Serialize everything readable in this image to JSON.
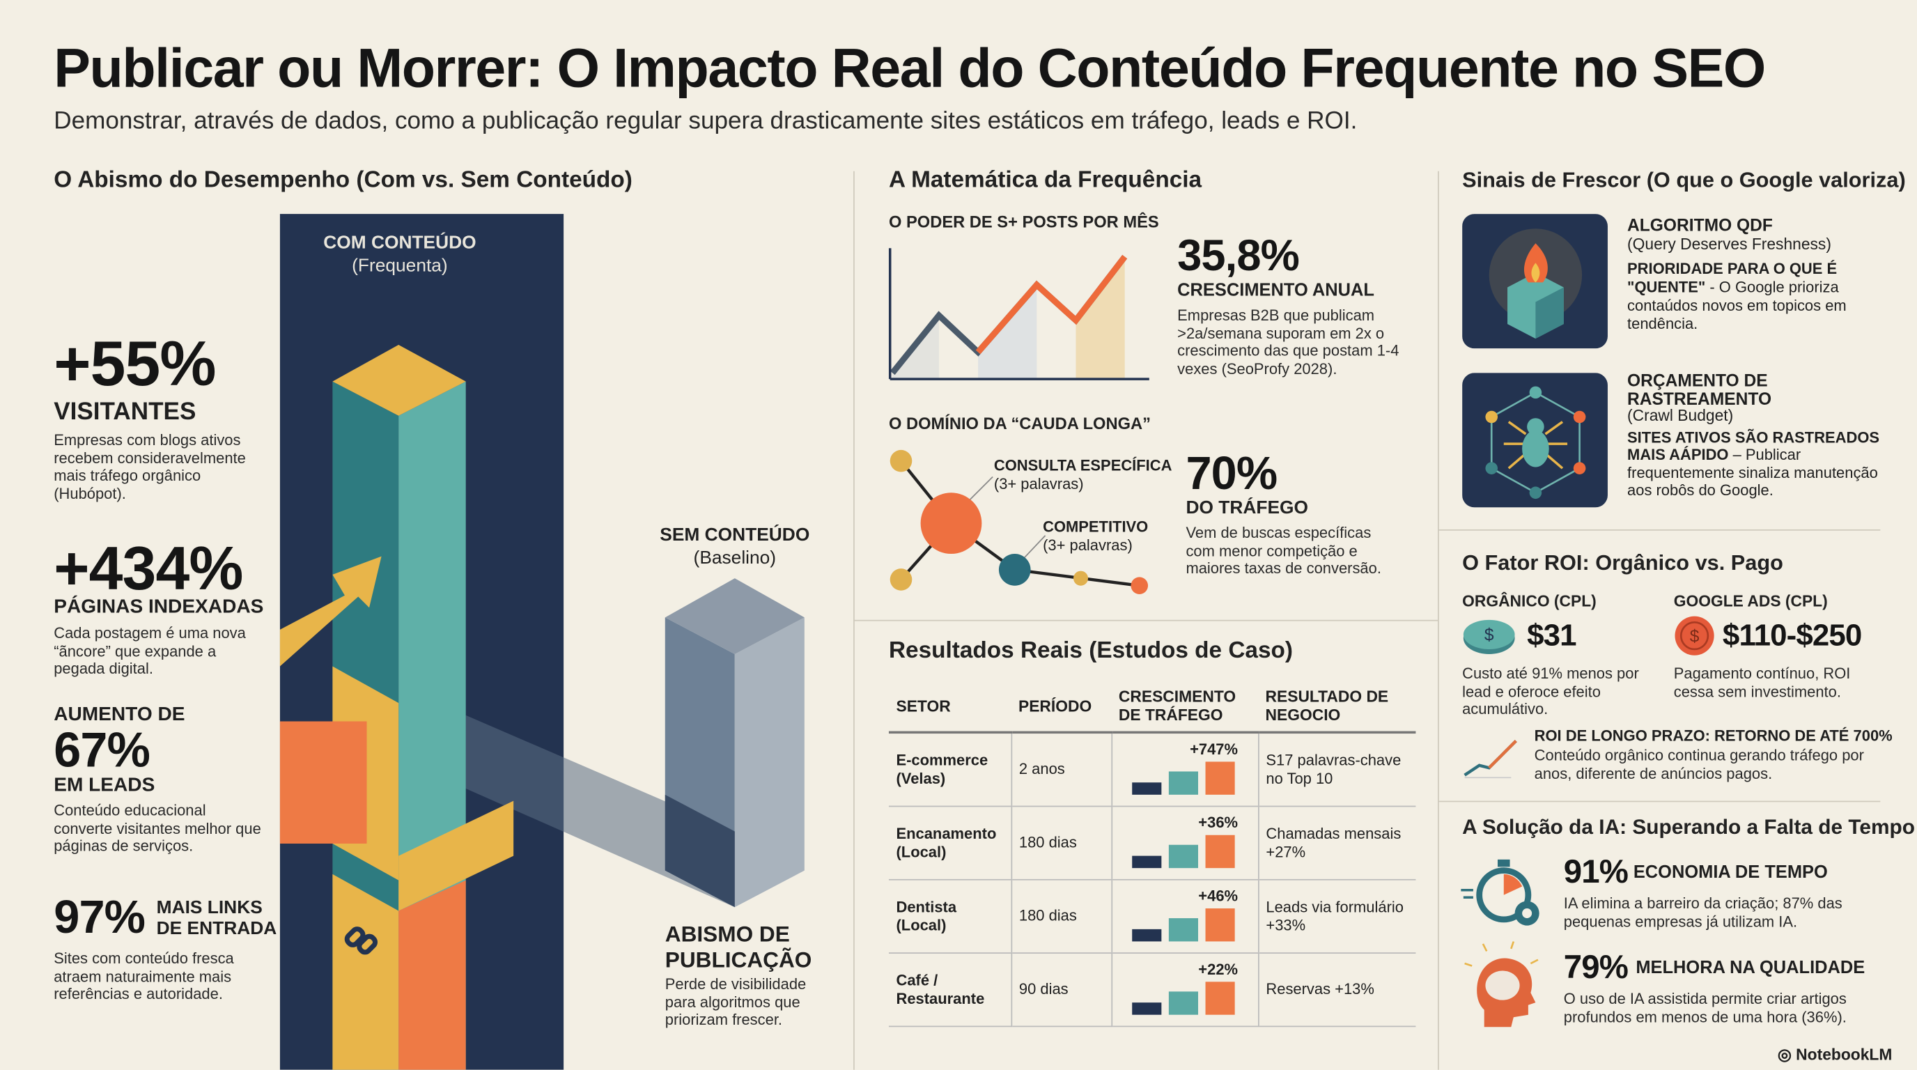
{
  "header": {
    "title": "Publicar ou Morrer: O Impacto Real do Conteúdo Frequente no SEO",
    "subtitle": "Demonstrar, através de dados, como a publicação regular supera drasticamente sites estáticos em tráfego, leads e ROI."
  },
  "left": {
    "heading": "O Abismo do Desempenho (Com vs. Sem Conteúdo)",
    "com_label": "COM CONTEÚDO",
    "com_sub": "(Frequenta)",
    "sem_label": "SEM CONTEÚDO",
    "sem_sub": "(Baselino)",
    "abismo_title": "ABISMO DE PUBLICAÇÃO",
    "abismo_desc": "Perde de visibilidade para algoritmos que priorizam frescer.",
    "stats": [
      {
        "value": "+55%",
        "label": "VISITANTES",
        "desc": "Empresas com blogs ativos recebem consideravelmente mais tráfego orgânico (Hubópot)."
      },
      {
        "value": "+434%",
        "label": "PÁGINAS INDEXADAS",
        "desc": "Cada postagem é uma nova “ãncore” que expande a pegada digital."
      },
      {
        "pre": "AUMENTO DE",
        "value": "67%",
        "label": "EM LEADS",
        "desc": "Conteúdo educacional converte visitantes melhor que páginas de serviços."
      },
      {
        "value": "97%",
        "label": "MAIS LINKS DE ENTRADA",
        "desc": "Sites com conteúdo fresca atraem naturaimente mais referências e autoridade."
      }
    ]
  },
  "middle": {
    "heading": "A Matemática da Frequência",
    "poder": {
      "title": "O PODER DE S+ POSTS POR MÊS",
      "value": "35,8%",
      "label": "CRESCIMENTO ANUAL",
      "desc": "Empresas B2B que publicam >2a/semana suporam em 2x o crescimento das que postam 1-4 vexes (SeoProfy 2028)."
    },
    "cauda": {
      "title": "O DOMÍNIO DA “CAUDA LONGA”",
      "node1": "CONSULTA ESPECÍFICA",
      "node1_sub": "(3+ palavras)",
      "node2": "COMPETITIVO",
      "node2_sub": "(3+ palavras)",
      "value": "70%",
      "label": "DO TRÁFEGO",
      "desc": "Vem de buscas específicas com menor competição e maiores taxas de conversão."
    },
    "cases": {
      "heading": "Resultados Reais (Estudos de Caso)",
      "columns": [
        "SETOR",
        "PERÍODO",
        "CRESCIMENTO DE TRÁFEGO",
        "RESULTADO DE NEGOCIO"
      ],
      "rows": [
        {
          "setor": "E-commerce (Velas)",
          "periodo": "2 anos",
          "crescimento": "+747%",
          "resultado": "S17 palavras-chave no Top 10"
        },
        {
          "setor": "Encanamento (Local)",
          "periodo": "180 dias",
          "crescimento": "+36%",
          "resultado": "Chamadas mensais +27%"
        },
        {
          "setor": "Dentista (Local)",
          "periodo": "180 dias",
          "crescimento": "+46%",
          "resultado": "Leads via formulário +33%"
        },
        {
          "setor": "Café / Restaurante",
          "periodo": "90 dias",
          "crescimento": "+22%",
          "resultado": "Reservas +13%"
        }
      ]
    }
  },
  "right": {
    "heading": "Sinais de Frescor (O que o Google valoriza)",
    "qdf": {
      "title": "ALGORITMO QDF",
      "sub": "(Query Deserves Freshness)",
      "bold": "PRIORIDADE PARA O QUE É \"QUENTE\"",
      "desc": " - O Google prioriza contaúdos novos em topicos em tendência."
    },
    "crawl": {
      "title": "ORÇAMENTO DE RASTREAMENTO",
      "sub": "(Crawl Budget)",
      "bold": "SITES ATIVOS SÃO RASTREADOS MAIS AÁPIDO",
      "desc": " – Publicar frequentemente sinaliza manutenção aos robôs do Google."
    },
    "roi": {
      "heading": "O Fator ROI: Orgânico vs. Pago",
      "org_label": "ORGÂNICO (CPL)",
      "org_value": "$31",
      "org_desc": "Custo até 91% menos por lead e oferoce efeito acumulátivo.",
      "ads_label": "GOOGLE ADS (CPL)",
      "ads_value": "$110-$250",
      "ads_desc": "Pagamento contínuo, ROI cessa sem investimento.",
      "long_title": "ROI DE LONGO PRAZO: RETORNO DE ATÉ 700%",
      "long_desc": "Conteúdo orgânico continua gerando tráfego por anos, diferente de anúncios pagos."
    },
    "ia": {
      "heading": "A Solução da IA: Superando a Falta de Tempo",
      "s1_value": "91%",
      "s1_label": "ECONOMIA DE TEMPO",
      "s1_desc": "IA elimina a barreiro da criação; 87% das pequenas empresas já utilizam IA.",
      "s2_value": "79%",
      "s2_label": "MELHORA NA QUALIDADE",
      "s2_desc": "O uso de IA assistida permite criar artigos profundos em menos de uma hora (36%)."
    }
  },
  "footer": {
    "brand": "NotebookLM"
  },
  "colors": {
    "navy": "#233350",
    "teal": "#5aa9a3",
    "orange": "#ee7a45",
    "yellow": "#e8b54a",
    "bg": "#f3efe4"
  }
}
